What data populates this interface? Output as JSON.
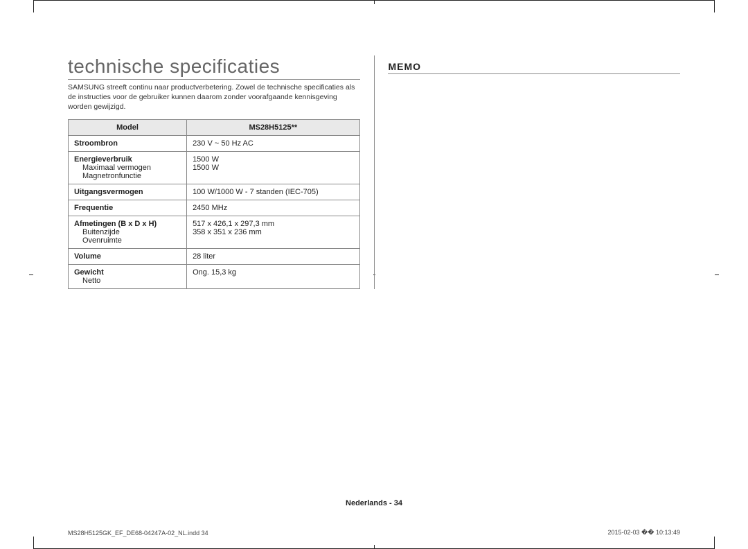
{
  "left": {
    "title": "technische specificaties",
    "intro": "SAMSUNG streeft continu naar productverbetering. Zowel de technische specificaties als de instructies voor de gebruiker kunnen daarom zonder voorafgaande kennisgeving worden gewijzigd.",
    "table": {
      "header_left": "Model",
      "header_right": "MS28H5125**",
      "rows": [
        {
          "label": "Stroombron",
          "subs": [],
          "value": "230 V ~ 50 Hz AC",
          "subvals": []
        },
        {
          "label": "Energieverbruik",
          "subs": [
            "Maximaal vermogen",
            "Magnetronfunctie"
          ],
          "value": "",
          "subvals": [
            "1500 W",
            "1500 W"
          ]
        },
        {
          "label": "Uitgangsvermogen",
          "subs": [],
          "value": "100 W/1000 W - 7 standen (IEC-705)",
          "subvals": []
        },
        {
          "label": "Frequentie",
          "subs": [],
          "value": "2450 MHz",
          "subvals": []
        },
        {
          "label": "Afmetingen (B x D x H)",
          "subs": [
            "Buitenzijde",
            "Ovenruimte"
          ],
          "value": "",
          "subvals": [
            "517 x 426,1 x 297,3 mm",
            "358 x 351 x 236 mm"
          ]
        },
        {
          "label": "Volume",
          "subs": [],
          "value": "28 liter",
          "subvals": []
        },
        {
          "label": "Gewicht",
          "subs": [
            "Netto"
          ],
          "value": "",
          "subvals": [
            "Ong. 15,3 kg"
          ]
        }
      ]
    }
  },
  "right": {
    "memo": "MEMO"
  },
  "footer": "Nederlands - 34",
  "print_left": "MS28H5125GK_EF_DE68-04247A-02_NL.indd   34",
  "print_right": "2015-02-03   �� 10:13:49",
  "style": {
    "title_color": "#666666",
    "border_color": "#888888",
    "header_bg": "#e9e9e9",
    "text_color": "#222222",
    "title_fontsize": 28,
    "body_fontsize": 11
  }
}
